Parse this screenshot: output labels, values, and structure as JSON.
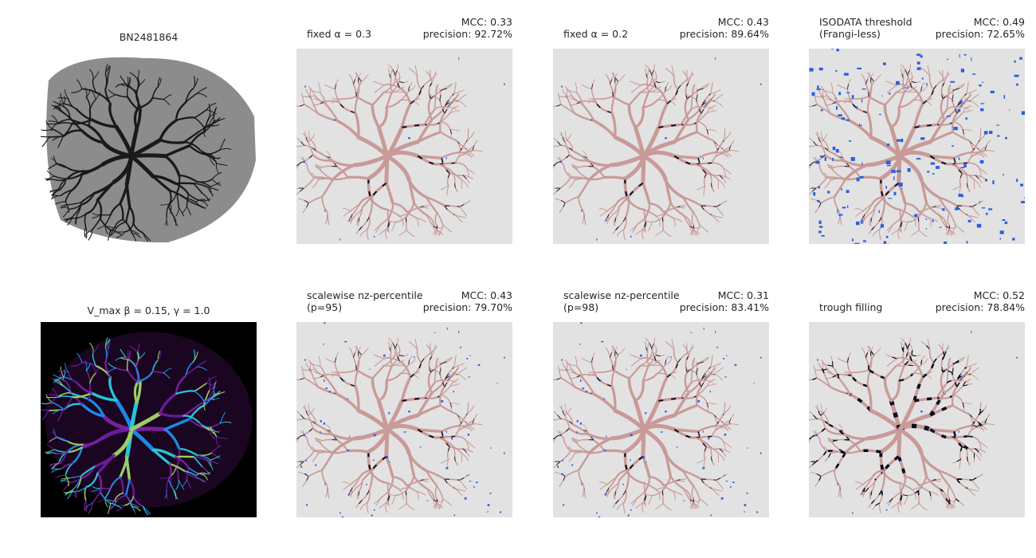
{
  "panels": [
    {
      "title": "BN2481864"
    },
    {
      "left": [
        "fixed α = 0.3"
      ],
      "right": [
        "MCC: 0.33",
        "precision: 92.72%"
      ]
    },
    {
      "left": [
        "fixed α = 0.2"
      ],
      "right": [
        "MCC: 0.43",
        "precision: 89.64%"
      ]
    },
    {
      "left": [
        "ISODATA threshold",
        "(Frangi-less)"
      ],
      "right": [
        "MCC: 0.49",
        "precision: 72.65%"
      ]
    },
    {
      "title": "V_max β = 0.15, γ = 1.0"
    },
    {
      "left": [
        "scalewise nz-percentile",
        "(p=95)"
      ],
      "right": [
        "MCC: 0.43",
        "precision: 79.70%"
      ]
    },
    {
      "left": [
        "scalewise nz-percentile",
        "(p=98)"
      ],
      "right": [
        "MCC: 0.31",
        "precision: 83.41%"
      ]
    },
    {
      "left": [
        "trough filling"
      ],
      "right": [
        "MCC: 0.52",
        "precision: 78.84%"
      ]
    }
  ]
}
